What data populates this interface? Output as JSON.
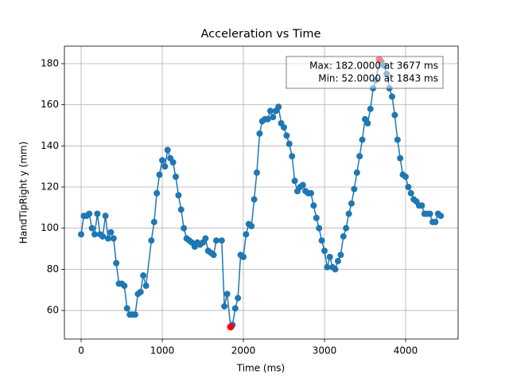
{
  "chart_data": {
    "type": "line",
    "title": "Acceleration vs Time",
    "xlabel": "Time (ms)",
    "ylabel": "HandTipRight y (mm)",
    "x": [
      0,
      33,
      66,
      100,
      133,
      166,
      200,
      233,
      266,
      300,
      333,
      366,
      400,
      433,
      466,
      500,
      533,
      566,
      600,
      633,
      666,
      700,
      733,
      766,
      800,
      866,
      900,
      933,
      966,
      1000,
      1033,
      1066,
      1100,
      1133,
      1166,
      1200,
      1233,
      1266,
      1300,
      1333,
      1366,
      1400,
      1433,
      1466,
      1500,
      1533,
      1566,
      1600,
      1633,
      1666,
      1733,
      1766,
      1800,
      1843,
      1866,
      1900,
      1933,
      1966,
      2000,
      2033,
      2066,
      2100,
      2133,
      2166,
      2200,
      2233,
      2266,
      2300,
      2333,
      2366,
      2400,
      2433,
      2466,
      2500,
      2533,
      2566,
      2600,
      2633,
      2666,
      2700,
      2733,
      2766,
      2800,
      2833,
      2866,
      2900,
      2933,
      2966,
      3000,
      3033,
      3066,
      3100,
      3133,
      3166,
      3200,
      3233,
      3266,
      3300,
      3333,
      3366,
      3400,
      3433,
      3466,
      3500,
      3533,
      3566,
      3600,
      3633,
      3677,
      3700,
      3733,
      3766,
      3800,
      3833,
      3866,
      3900,
      3933,
      3966,
      4000,
      4033,
      4066,
      4100,
      4133,
      4166,
      4200,
      4233,
      4266,
      4300,
      4333,
      4366,
      4400,
      4433
    ],
    "series": [
      {
        "name": "HandTipRight y",
        "color": "#1f77b4",
        "values": [
          97,
          106,
          106,
          107,
          100,
          97,
          107,
          97,
          96,
          106,
          95,
          98,
          95,
          83,
          73,
          73,
          72,
          61,
          58,
          58,
          58,
          68,
          69,
          77,
          72,
          94,
          103,
          117,
          126,
          133,
          130,
          138,
          134,
          132,
          125,
          116,
          109,
          100,
          95,
          94,
          93,
          91,
          93,
          92,
          93,
          95,
          89,
          88,
          87,
          94,
          94,
          62,
          68,
          52,
          53,
          61,
          66,
          87,
          86,
          97,
          102,
          101,
          114,
          127,
          146,
          152,
          153,
          153,
          157,
          154,
          157,
          159,
          151,
          149,
          145,
          141,
          135,
          123,
          118,
          120,
          121,
          118,
          117,
          117,
          111,
          105,
          100,
          94,
          89,
          81,
          86,
          81,
          80,
          84,
          87,
          96,
          100,
          107,
          112,
          119,
          127,
          135,
          143,
          153,
          151,
          158,
          168,
          172,
          182,
          181,
          179,
          175,
          168,
          164,
          155,
          143,
          134,
          126,
          125,
          120,
          117,
          114,
          113,
          111,
          111,
          107,
          107,
          107,
          103,
          103,
          107,
          106
        ]
      }
    ],
    "highlight_points": {
      "color": "red",
      "x": [
        3677,
        1843
      ],
      "y": [
        182,
        52
      ]
    },
    "annotations": [
      "Max: 182.0000 at 3677 ms",
      "Min: 52.0000 at 1843 ms"
    ],
    "xlim": [
      -206,
      4647
    ],
    "ylim": [
      46.1,
      188.5
    ],
    "xticks": [
      0,
      1000,
      2000,
      3000,
      4000
    ],
    "yticks": [
      60,
      80,
      100,
      120,
      140,
      160,
      180
    ],
    "grid": true
  }
}
